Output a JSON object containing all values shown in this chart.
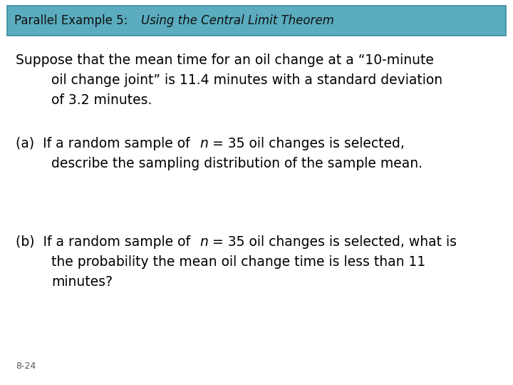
{
  "title_part1": "Parallel Example 5:  ",
  "title_part2": "Using the Central Limit Theorem",
  "title_bg_color": "#5AACBE",
  "title_border_color": "#3A8CA0",
  "bg_color": "#ffffff",
  "font_color": "#000000",
  "slide_number": "8-24",
  "title_fontsize": 12,
  "body_fontsize": 13.5,
  "slide_num_fontsize": 9
}
